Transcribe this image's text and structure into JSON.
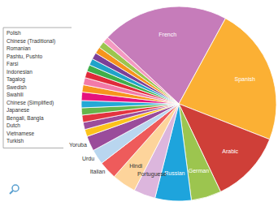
{
  "chart_data": {
    "type": "pie",
    "categories": [
      "French",
      "Spanish",
      "Arabic",
      "German",
      "Russian",
      "Portuguese",
      "Hindi",
      "Italian",
      "Urdu",
      "Yoruba",
      "Turkish",
      "Vietnamese",
      "Dutch",
      "Bengali, Bangla",
      "Japanese",
      "Chinese (Simplified)",
      "Swahili",
      "Swedish",
      "Tagalog",
      "Indonesian",
      "Farsi",
      "Pashtu, Pushto",
      "Romanian",
      "Chinese (Traditional)",
      "Polish"
    ],
    "values": [
      21,
      23,
      12,
      5,
      6,
      3.6,
      4,
      3,
      2.5,
      2.5,
      1.2,
      1.2,
      1.2,
      1.2,
      1.2,
      1.4,
      1.2,
      1.2,
      1.1,
      1.1,
      1.1,
      1.1,
      1.1,
      1.1,
      1.0
    ],
    "colors": [
      "#c67cba",
      "#fbb034",
      "#cf3f38",
      "#9cc54f",
      "#1ea4dc",
      "#dcb6dd",
      "#fdd49b",
      "#ee5b5b",
      "#b9d6ef",
      "#9a4c9b",
      "#fcc21b",
      "#9b4c9b",
      "#e3343f",
      "#66b54a",
      "#23a9d6",
      "#e5137e",
      "#f7941d",
      "#f27aa8",
      "#e02a3a",
      "#3fae49",
      "#1fa3c9",
      "#7b3f98",
      "#f7941d",
      "#9cc54f",
      "#f49ac1"
    ]
  }
}
